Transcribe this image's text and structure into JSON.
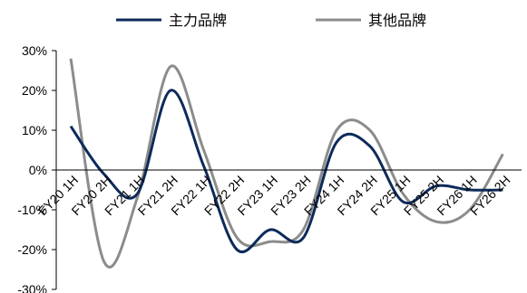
{
  "chart_data": {
    "type": "line",
    "categories": [
      "FY20 1H",
      "FY20 2H",
      "FY21 1H",
      "FY21 2H",
      "FY22 1H",
      "FY22 2H",
      "FY23 1H",
      "FY23 2H",
      "FY24 1H",
      "FY24 2H",
      "FY25 1H",
      "FY25 2H",
      "FY26 1H",
      "FY26 2H"
    ],
    "series": [
      {
        "name": "主力品牌",
        "color": "#0d2a5a",
        "values": [
          11,
          -1,
          -6,
          20,
          1,
          -20,
          -15,
          -17,
          7,
          6,
          -8,
          -4,
          -5,
          -5
        ]
      },
      {
        "name": "其他品牌",
        "color": "#8c8c8c",
        "values": [
          28,
          -23,
          -7,
          26,
          5,
          -17,
          -18,
          -15,
          10,
          10,
          -6,
          -13,
          -10,
          4
        ]
      }
    ],
    "y_ticks": [
      "30%",
      "20%",
      "10%",
      "0%",
      "-10%",
      "-20%",
      "-30%"
    ],
    "ylim": [
      -30,
      30
    ],
    "legend_position": "top",
    "grid": false
  }
}
